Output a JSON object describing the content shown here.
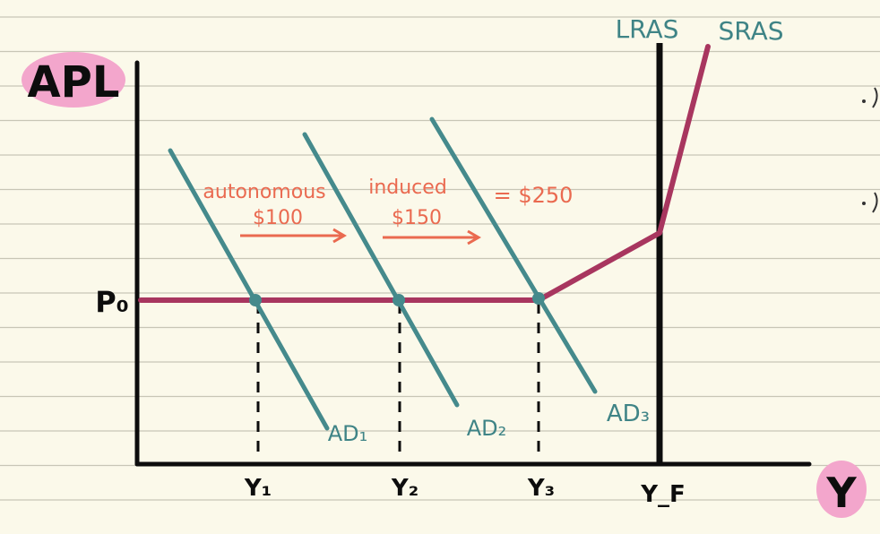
{
  "axes": {
    "y_label": "APL",
    "x_label": "Y",
    "highlight_color": "#f3a6cc"
  },
  "price_level": {
    "label": "P₀"
  },
  "output_labels": [
    "Y₁",
    "Y₂",
    "Y₃",
    "Y_F"
  ],
  "curves": {
    "ad": [
      "AD₁",
      "AD₂",
      "AD₃"
    ],
    "lras": "LRAS",
    "sras": "SRAS"
  },
  "annotations": {
    "autonomous_title": "autonomous",
    "autonomous_amount": "$100",
    "induced_title": "induced",
    "induced_amount": "$150",
    "total": "= $250"
  },
  "colors": {
    "paper": "#fbf9ea",
    "rule": "#c8c6b6",
    "axis": "#0d0d0d",
    "ad": "#458a8c",
    "sras": "#a8365f",
    "annotation": "#ea6a50",
    "label": "#3f8486"
  }
}
